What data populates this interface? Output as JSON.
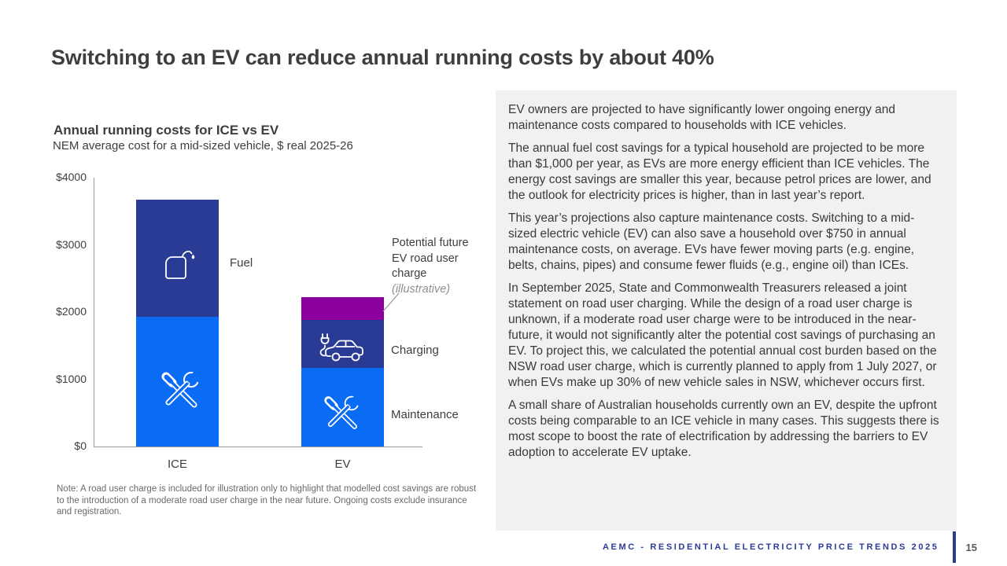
{
  "slide": {
    "title": "Switching to an EV can reduce annual running costs by about 40%"
  },
  "chart": {
    "title": "Annual running costs for ICE vs EV",
    "subtitle": "NEM average cost for a mid-sized vehicle, $ real 2025-26",
    "segment_labels": {
      "fuel": "Fuel",
      "charging": "Charging",
      "maintenance": "Maintenance"
    },
    "annotation": {
      "text": "Potential future EV road user charge",
      "style_note": "(illustrative)"
    },
    "note": "Note: A road user charge is included for illustration only to highlight that modelled cost savings are robust to the introduction of a moderate road user charge in the near future. Ongoing costs exclude insurance and registration."
  },
  "chart_data": {
    "type": "bar",
    "stacked": true,
    "title": "Annual running costs for ICE vs EV",
    "subtitle": "NEM average cost for a mid-sized vehicle, $ real 2025-26",
    "categories": [
      "ICE",
      "EV"
    ],
    "series": [
      {
        "name": "Maintenance",
        "color": "#0a6cf5",
        "values": [
          1930,
          1170
        ]
      },
      {
        "name": "Charging",
        "color": "#2a3b96",
        "values": [
          0,
          715
        ]
      },
      {
        "name": "Fuel",
        "color": "#2a3b96",
        "values": [
          1740,
          0
        ]
      },
      {
        "name": "Potential future EV road user charge (illustrative)",
        "color": "#8b009e",
        "values": [
          0,
          340
        ]
      }
    ],
    "totals": {
      "ICE": 3670,
      "EV": 2225
    },
    "ylim": [
      0,
      4000
    ],
    "yticks": [
      {
        "value": 0,
        "label": "$0"
      },
      {
        "value": 1000,
        "label": "$1000"
      },
      {
        "value": 2000,
        "label": "$2000"
      },
      {
        "value": 3000,
        "label": "$3000"
      },
      {
        "value": 4000,
        "label": "$4000"
      }
    ],
    "grid": false,
    "legend": "none"
  },
  "panel": {
    "paragraphs": [
      "EV owners are projected to have significantly lower ongoing energy and maintenance costs compared to households with ICE vehicles.",
      "The annual fuel cost savings for a typical household are projected to be more than $1,000 per year, as EVs are more energy efficient than ICE vehicles. The energy cost savings are smaller this year, because petrol prices are lower, and the outlook for electricity prices is higher, than in last year’s report.",
      "This year’s projections also capture maintenance costs. Switching to a mid-sized electric vehicle (EV) can also save a household over $750 in annual maintenance costs, on average. EVs have fewer moving parts (e.g. engine, belts, chains, pipes) and consume fewer fluids (e.g., engine oil) than ICEs.",
      "In September 2025, State and Commonwealth Treasurers released a joint statement on road user charging. While the design of a road user charge is unknown, if a moderate road user charge were to be introduced in the near-future, it would not significantly alter the potential cost savings of purchasing an EV. To project this, we calculated the potential annual cost burden based on the NSW road user charge, which is currently planned to apply from 1 July 2027, or when EVs make up 30% of new vehicle sales in NSW, whichever occurs first.",
      "A small share of Australian households currently own an EV, despite the upfront costs being comparable to an ICE vehicle in many cases. This suggests there is most scope to boost the rate of electrification by addressing the barriers to EV adoption to accelerate EV uptake."
    ]
  },
  "footer": {
    "text": "AEMC - RESIDENTIAL ELECTRICITY PRICE TRENDS 2025",
    "page": "15"
  },
  "colors": {
    "maintenance_blue": "#0a6cf5",
    "dark_blue": "#2a3b96",
    "road_user_charge_purple": "#8b009e",
    "footer_blue": "#2b3b97",
    "panel_background": "#f1f1f1",
    "axis_gray": "#9b9b9b"
  }
}
